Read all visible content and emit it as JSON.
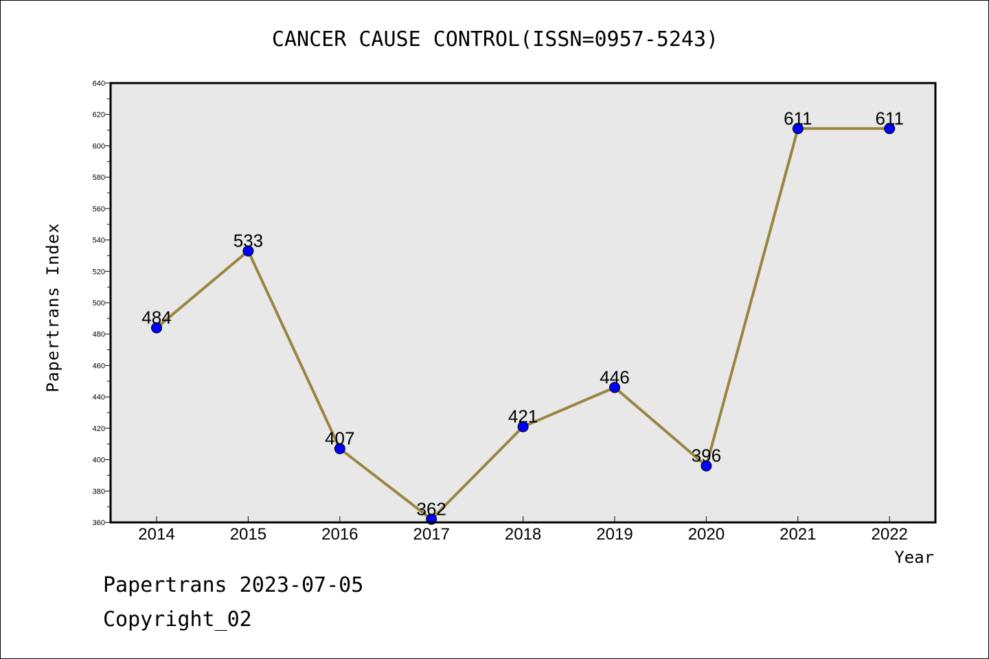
{
  "chart_data": {
    "type": "line",
    "title": "CANCER CAUSE CONTROL(ISSN=0957-5243)",
    "xlabel": "Year",
    "ylabel": "Papertrans Index",
    "categories": [
      "2014",
      "2015",
      "2016",
      "2017",
      "2018",
      "2019",
      "2020",
      "2021",
      "2022"
    ],
    "series": [
      {
        "values": [
          484,
          533,
          407,
          362,
          421,
          446,
          396,
          611,
          611
        ]
      }
    ],
    "ylim": [
      360,
      640
    ],
    "yticks": [
      360,
      380,
      400,
      420,
      440,
      460,
      480,
      500,
      520,
      540,
      560,
      580,
      600,
      620,
      640
    ],
    "data_labels": true,
    "grid": false,
    "colors": {
      "line": "#9a8540",
      "marker": "#0000ff",
      "plot_bg": "#e8e8e8"
    }
  },
  "footer": {
    "date_line": "Papertrans 2023-07-05",
    "copyright": "Copyright_02"
  }
}
